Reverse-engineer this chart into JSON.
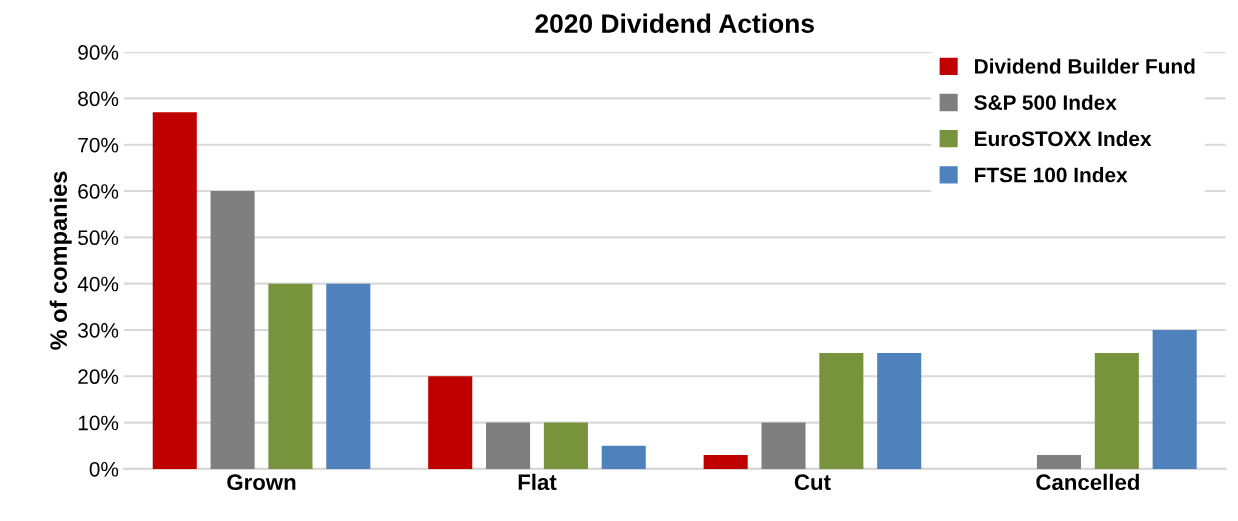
{
  "chart_data": {
    "type": "bar",
    "title": "2020 Dividend Actions",
    "ylabel": "% of companies",
    "categories": [
      "Grown",
      "Flat",
      "Cut",
      "Cancelled"
    ],
    "series": [
      {
        "name": "Dividend Builder Fund",
        "color": "#c00000",
        "values": [
          77,
          20,
          3,
          0
        ]
      },
      {
        "name": "S&P 500 Index",
        "color": "#7f7f7f",
        "values": [
          60,
          10,
          10,
          3
        ]
      },
      {
        "name": "EuroSTOXX Index",
        "color": "#77933c",
        "values": [
          40,
          10,
          25,
          25
        ]
      },
      {
        "name": "FTSE 100 Index",
        "color": "#4f81bd",
        "values": [
          40,
          5,
          25,
          30
        ]
      }
    ],
    "ylim": [
      0,
      90
    ],
    "yticks": [
      {
        "value": 0,
        "label": "0%"
      },
      {
        "value": 10,
        "label": "10%"
      },
      {
        "value": 20,
        "label": "20%"
      },
      {
        "value": 30,
        "label": "30%"
      },
      {
        "value": 40,
        "label": "40%"
      },
      {
        "value": 50,
        "label": "50%"
      },
      {
        "value": 60,
        "label": "60%"
      },
      {
        "value": 70,
        "label": "70%"
      },
      {
        "value": 80,
        "label": "80%"
      },
      {
        "value": 90,
        "label": "90%"
      }
    ],
    "grid": "y",
    "legend": "top right"
  }
}
